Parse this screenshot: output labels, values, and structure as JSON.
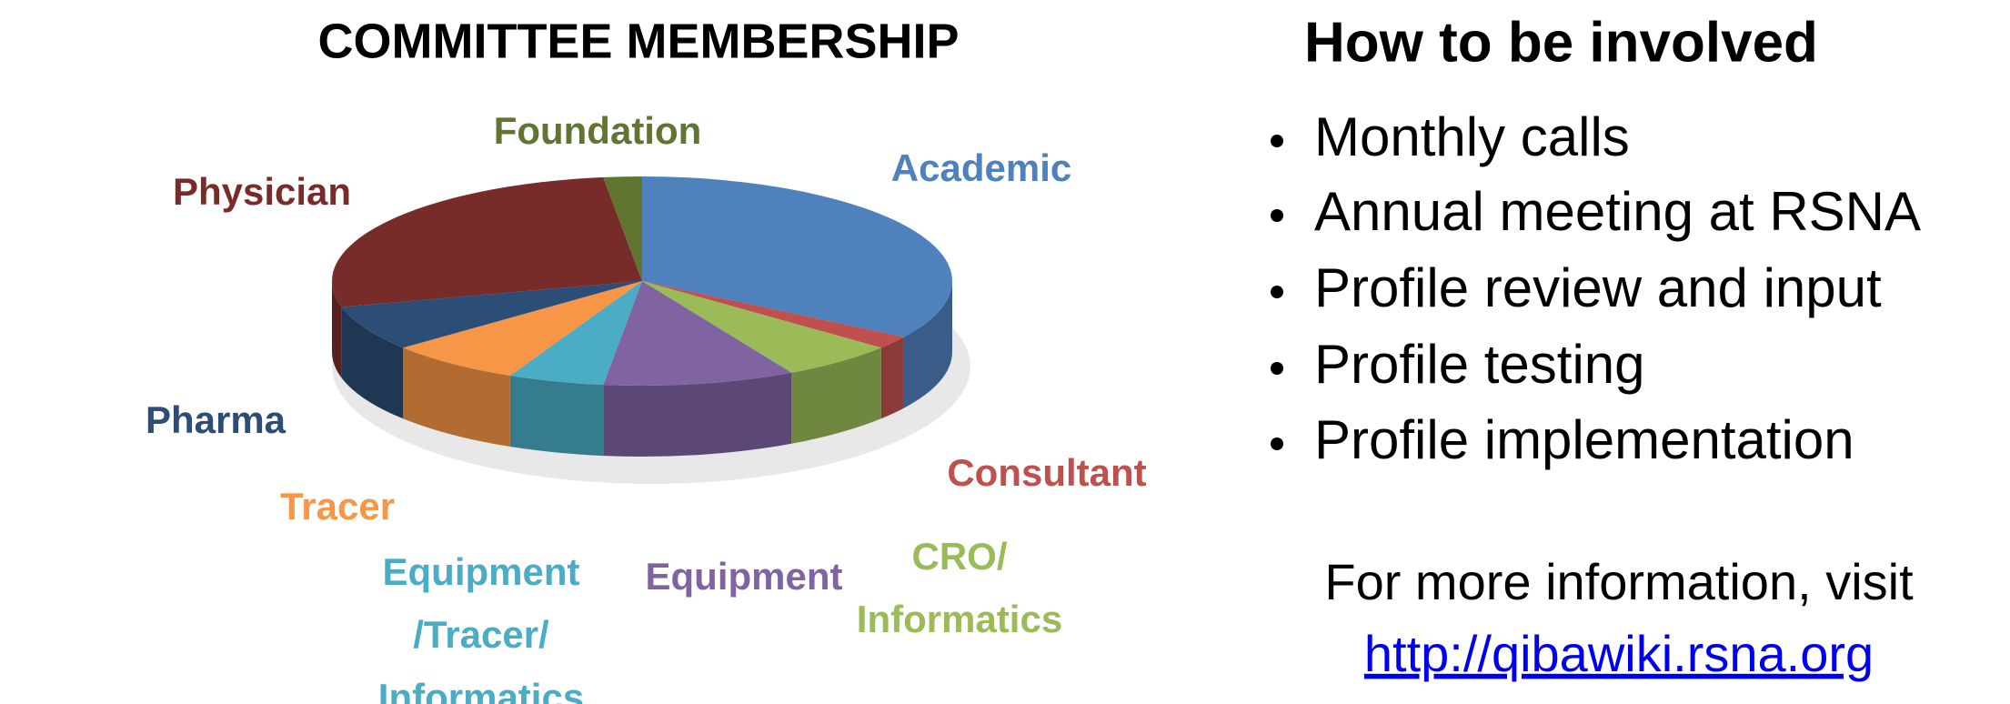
{
  "chart_data": {
    "type": "pie",
    "title": "COMMITTEE MEMBERSHIP",
    "categories": [
      "Academic",
      "Consultant",
      "CRO/\nInformatics",
      "Equipment",
      "Equipment\n/Tracer/\nInformatics",
      "Tracer",
      "Pharma",
      "Physician",
      "Foundation"
    ],
    "values": [
      34,
      2,
      6,
      10,
      5,
      7,
      7,
      27,
      2
    ],
    "colors": [
      "#4f81bd",
      "#c0504d",
      "#9bbb59",
      "#8064a2",
      "#4bacc6",
      "#f79646",
      "#2c4d75",
      "#772c2a",
      "#5f7530"
    ]
  },
  "panel": {
    "title": "How to be involved",
    "bullets": [
      "Monthly calls",
      "Annual meeting at RSNA",
      "Profile review and input",
      "Profile testing",
      "Profile implementation"
    ],
    "more_info": "For more information, visit",
    "link": "http://qibawiki.rsna.org"
  }
}
